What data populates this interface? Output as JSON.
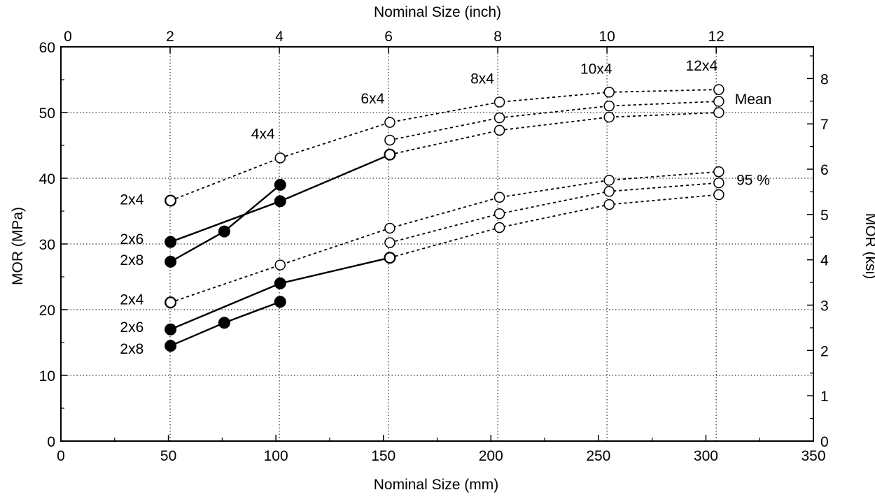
{
  "chart_data": {
    "type": "line",
    "title": "",
    "xlabel": "Nominal Size (mm)",
    "ylabel": "MOR (MPa)",
    "x2label": "Nominal Size (inch)",
    "y2label": "MOR (ksi)",
    "xlim": [
      0,
      350
    ],
    "ylim": [
      0,
      60
    ],
    "x2lim": [
      0,
      13.78
    ],
    "y2lim": [
      0,
      8.7
    ],
    "grid": true,
    "x_ticks": [
      0,
      50,
      100,
      150,
      200,
      250,
      300,
      350
    ],
    "y_ticks": [
      0,
      10,
      20,
      30,
      40,
      50,
      60
    ],
    "x2_ticks": [
      0,
      2,
      4,
      6,
      8,
      10,
      12
    ],
    "y2_ticks": [
      0,
      1,
      2,
      3,
      4,
      5,
      6,
      7,
      8
    ],
    "series": [
      {
        "group": "Mean",
        "marker": "filled",
        "line": "solid",
        "x": [
          51,
          102,
          153
        ],
        "y": [
          30.3,
          36.5,
          43.6
        ]
      },
      {
        "group": "Mean",
        "marker": "filled",
        "line": "solid",
        "x": [
          51,
          76,
          102
        ],
        "y": [
          27.3,
          31.9,
          39.0
        ]
      },
      {
        "group": "Mean",
        "marker": "filled",
        "line": "none",
        "x": [
          51
        ],
        "y": [
          36.6
        ]
      },
      {
        "group": "Mean",
        "marker": "open",
        "line": "dashed",
        "x": [
          51,
          102,
          153,
          204,
          255,
          306
        ],
        "y": [
          36.6,
          43.1,
          48.5,
          51.6,
          53.1,
          53.5
        ]
      },
      {
        "group": "Mean",
        "marker": "open",
        "line": "dashed",
        "x": [
          153,
          204,
          255,
          306
        ],
        "y": [
          45.8,
          49.2,
          51.0,
          51.7
        ]
      },
      {
        "group": "Mean",
        "marker": "open",
        "line": "dashed",
        "x": [
          153,
          204,
          255,
          306
        ],
        "y": [
          43.6,
          47.3,
          49.3,
          50.0
        ]
      },
      {
        "group": "95 %",
        "marker": "filled",
        "line": "solid",
        "x": [
          51,
          102,
          153
        ],
        "y": [
          17.0,
          24.0,
          27.9
        ]
      },
      {
        "group": "95 %",
        "marker": "filled",
        "line": "solid",
        "x": [
          51,
          76,
          102
        ],
        "y": [
          14.5,
          18.0,
          21.2
        ]
      },
      {
        "group": "95 %",
        "marker": "filled",
        "line": "none",
        "x": [
          51
        ],
        "y": [
          21.1
        ]
      },
      {
        "group": "95 %",
        "marker": "open",
        "line": "dashed",
        "x": [
          51,
          102,
          153,
          204,
          255,
          306
        ],
        "y": [
          21.1,
          26.8,
          32.4,
          37.1,
          39.7,
          41.0
        ]
      },
      {
        "group": "95 %",
        "marker": "open",
        "line": "dashed",
        "x": [
          153,
          204,
          255,
          306
        ],
        "y": [
          30.2,
          34.6,
          38.0,
          39.3
        ]
      },
      {
        "group": "95 %",
        "marker": "open",
        "line": "dashed",
        "x": [
          153,
          204,
          255,
          306
        ],
        "y": [
          27.9,
          32.5,
          36.0,
          37.5
        ]
      }
    ],
    "annotations": [
      {
        "text": "2x4",
        "x": 33,
        "y": 36.0
      },
      {
        "text": "2x6",
        "x": 33,
        "y": 30.0
      },
      {
        "text": "2x8",
        "x": 33,
        "y": 26.8
      },
      {
        "text": "2x4",
        "x": 33,
        "y": 20.8
      },
      {
        "text": "2x6",
        "x": 33,
        "y": 16.6
      },
      {
        "text": "2x8",
        "x": 33,
        "y": 13.3
      },
      {
        "text": "4x4",
        "x": 94,
        "y": 46.0
      },
      {
        "text": "6x4",
        "x": 145,
        "y": 51.4
      },
      {
        "text": "8x4",
        "x": 196,
        "y": 54.4
      },
      {
        "text": "10x4",
        "x": 249,
        "y": 55.9
      },
      {
        "text": "12x4",
        "x": 298,
        "y": 56.4
      },
      {
        "text": "Mean",
        "x": 322,
        "y": 51.3
      },
      {
        "text": "95 %",
        "x": 322,
        "y": 39.0
      }
    ]
  }
}
